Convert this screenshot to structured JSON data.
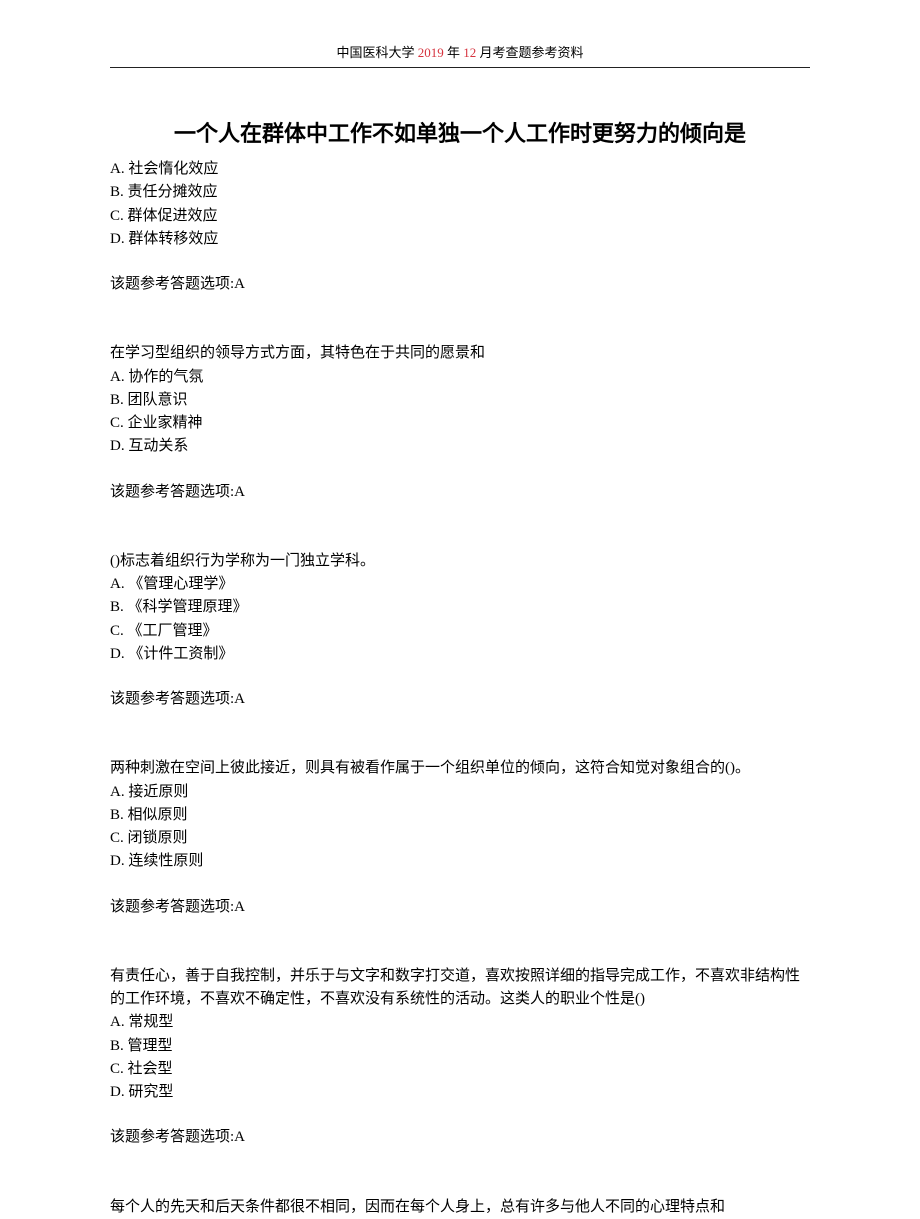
{
  "header": {
    "prefix": "中国医科大学",
    "highlight": " 2019 ",
    "mid": "年",
    "highlight2": " 12 ",
    "suffix": "月考查题参考资料"
  },
  "title": "一个人在群体中工作不如单独一个人工作时更努力的倾向是",
  "q1": {
    "a": "A. 社会惰化效应",
    "b": "B. 责任分摊效应",
    "c": "C. 群体促进效应",
    "d": "D. 群体转移效应",
    "ans": "该题参考答题选项:A"
  },
  "q2": {
    "stem": "在学习型组织的领导方式方面，其特色在于共同的愿景和",
    "a": "A. 协作的气氛",
    "b": "B. 团队意识",
    "c": "C. 企业家精神",
    "d": "D. 互动关系",
    "ans": "该题参考答题选项:A"
  },
  "q3": {
    "stem": "()标志着组织行为学称为一门独立学科。",
    "a": "A. 《管理心理学》",
    "b": "B. 《科学管理原理》",
    "c": "C. 《工厂管理》",
    "d": "D. 《计件工资制》",
    "ans": "该题参考答题选项:A"
  },
  "q4": {
    "stem": "两种刺激在空间上彼此接近，则具有被看作属于一个组织单位的倾向，这符合知觉对象组合的()。",
    "a": "A. 接近原则",
    "b": "B. 相似原则",
    "c": "C. 闭锁原则",
    "d": "D. 连续性原则",
    "ans": "该题参考答题选项:A"
  },
  "q5": {
    "stem": "有责任心，善于自我控制，并乐于与文字和数字打交道，喜欢按照详细的指导完成工作，不喜欢非结构性的工作环境，不喜欢不确定性，不喜欢没有系统性的活动。这类人的职业个性是()",
    "a": "A. 常规型",
    "b": "B. 管理型",
    "c": "C. 社会型",
    "d": "D. 研究型",
    "ans": "该题参考答题选项:A"
  },
  "q6": {
    "stem": "每个人的先天和后天条件都很不相同，因而在每个人身上，总有许多与他人不同的心理特点和"
  }
}
